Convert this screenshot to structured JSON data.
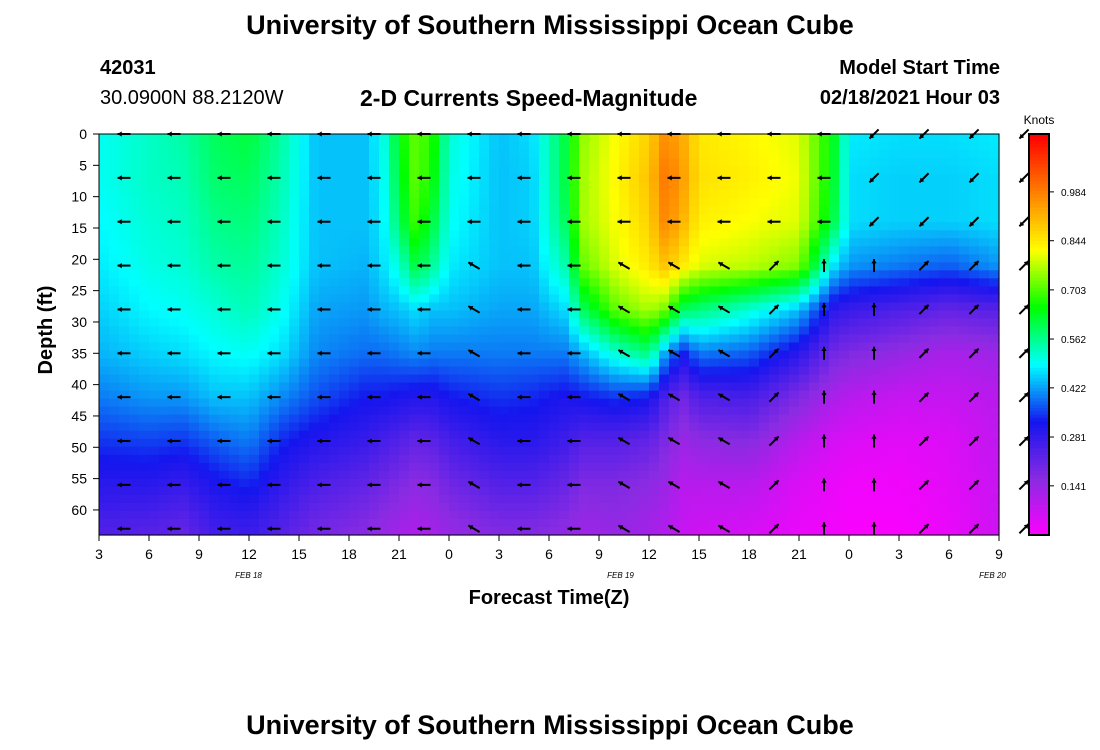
{
  "header": {
    "title": "University of Southern Mississippi Ocean Cube",
    "station_id": "42031",
    "station_coords": "30.0900N 88.2120W",
    "subtitle": "2-D Currents Speed-Magnitude",
    "model_label": "Model Start Time",
    "model_time": "02/18/2021 Hour 03",
    "footer_title": "University of Southern Mississippi Ocean Cube"
  },
  "chart_data": {
    "type": "heatmap",
    "title": "2-D Currents Speed-Magnitude",
    "xlabel": "Forecast Time(Z)",
    "ylabel": "Depth (ft)",
    "x_tick_labels": [
      "3",
      "6",
      "9",
      "12",
      "15",
      "18",
      "21",
      "0",
      "3",
      "6",
      "9",
      "12",
      "15",
      "18",
      "21",
      "0",
      "3",
      "6",
      "9"
    ],
    "x_range_hours": [
      0,
      54
    ],
    "date_labels": [
      {
        "text": "FEB 18",
        "hour": 9
      },
      {
        "text": "FEB 19",
        "hour": 33
      },
      {
        "text": "FEB 20",
        "hour": 57
      }
    ],
    "y_ticks": [
      0,
      5,
      10,
      15,
      20,
      25,
      30,
      35,
      40,
      45,
      50,
      55,
      60
    ],
    "ylim": [
      0,
      64
    ],
    "y_inverted": true,
    "colorbar": {
      "label": "Knots",
      "ticks": [
        "0.984",
        "0.844",
        "0.703",
        "0.562",
        "0.422",
        "0.281",
        "0.141"
      ],
      "range": [
        0,
        1.15
      ]
    },
    "color_stops": [
      "#ff00ff",
      "#8a2be2",
      "#1515ee",
      "#00ffff",
      "#00ff00",
      "#ffff00",
      "#ff8000",
      "#ff0000"
    ],
    "depths_ft": [
      0,
      7,
      14,
      21,
      28,
      35,
      42,
      49,
      56,
      63
    ],
    "speed_columns": [
      {
        "hour": 0,
        "v": [
          0.5,
          0.5,
          0.49,
          0.48,
          0.46,
          0.44,
          0.4,
          0.35,
          0.3,
          0.25
        ]
      },
      {
        "hour": 3,
        "v": [
          0.53,
          0.53,
          0.52,
          0.51,
          0.49,
          0.46,
          0.42,
          0.36,
          0.3,
          0.24
        ]
      },
      {
        "hour": 5,
        "v": [
          0.55,
          0.54,
          0.53,
          0.52,
          0.5,
          0.47,
          0.42,
          0.35,
          0.28,
          0.22
        ]
      },
      {
        "hour": 7,
        "v": [
          0.6,
          0.59,
          0.57,
          0.55,
          0.52,
          0.49,
          0.45,
          0.38,
          0.32,
          0.27
        ]
      },
      {
        "hour": 9,
        "v": [
          0.62,
          0.6,
          0.58,
          0.56,
          0.54,
          0.5,
          0.45,
          0.4,
          0.34,
          0.28
        ]
      },
      {
        "hour": 11,
        "v": [
          0.55,
          0.54,
          0.53,
          0.52,
          0.5,
          0.47,
          0.41,
          0.34,
          0.29,
          0.24
        ]
      },
      {
        "hour": 13,
        "v": [
          0.45,
          0.45,
          0.45,
          0.45,
          0.43,
          0.41,
          0.37,
          0.31,
          0.25,
          0.2
        ]
      },
      {
        "hour": 16,
        "v": [
          0.45,
          0.45,
          0.45,
          0.44,
          0.42,
          0.39,
          0.33,
          0.28,
          0.22,
          0.17
        ]
      },
      {
        "hour": 17,
        "v": [
          0.5,
          0.49,
          0.48,
          0.47,
          0.44,
          0.39,
          0.33,
          0.26,
          0.2,
          0.15
        ]
      },
      {
        "hour": 18,
        "v": [
          0.65,
          0.63,
          0.6,
          0.52,
          0.45,
          0.4,
          0.32,
          0.24,
          0.18,
          0.13
        ]
      },
      {
        "hour": 19,
        "v": [
          0.72,
          0.72,
          0.7,
          0.62,
          0.47,
          0.41,
          0.31,
          0.22,
          0.16,
          0.12
        ]
      },
      {
        "hour": 20,
        "v": [
          0.68,
          0.66,
          0.62,
          0.56,
          0.45,
          0.4,
          0.31,
          0.23,
          0.17,
          0.13
        ]
      },
      {
        "hour": 21,
        "v": [
          0.52,
          0.51,
          0.5,
          0.48,
          0.45,
          0.4,
          0.33,
          0.26,
          0.2,
          0.15
        ]
      },
      {
        "hour": 24,
        "v": [
          0.45,
          0.45,
          0.45,
          0.45,
          0.43,
          0.4,
          0.35,
          0.3,
          0.24,
          0.18
        ]
      },
      {
        "hour": 26,
        "v": [
          0.47,
          0.46,
          0.46,
          0.45,
          0.43,
          0.4,
          0.34,
          0.3,
          0.24,
          0.18
        ]
      },
      {
        "hour": 28,
        "v": [
          0.62,
          0.62,
          0.6,
          0.55,
          0.47,
          0.4,
          0.32,
          0.27,
          0.21,
          0.16
        ]
      },
      {
        "hour": 29,
        "v": [
          0.75,
          0.76,
          0.76,
          0.72,
          0.6,
          0.44,
          0.33,
          0.24,
          0.18,
          0.14
        ]
      },
      {
        "hour": 31,
        "v": [
          0.82,
          0.83,
          0.82,
          0.8,
          0.72,
          0.52,
          0.35,
          0.24,
          0.18,
          0.15
        ]
      },
      {
        "hour": 33,
        "v": [
          0.88,
          0.9,
          0.88,
          0.85,
          0.77,
          0.58,
          0.33,
          0.22,
          0.16,
          0.13
        ]
      },
      {
        "hour": 34,
        "v": [
          0.97,
          1.0,
          0.98,
          0.9,
          0.73,
          0.42,
          0.25,
          0.18,
          0.14,
          0.11
        ]
      },
      {
        "hour": 35,
        "v": [
          0.93,
          0.95,
          0.92,
          0.85,
          0.6,
          0.33,
          0.2,
          0.14,
          0.1,
          0.08
        ]
      },
      {
        "hour": 36,
        "v": [
          0.85,
          0.86,
          0.84,
          0.8,
          0.58,
          0.4,
          0.25,
          0.16,
          0.1,
          0.07
        ]
      },
      {
        "hour": 39,
        "v": [
          0.83,
          0.84,
          0.82,
          0.78,
          0.52,
          0.38,
          0.26,
          0.17,
          0.1,
          0.06
        ]
      },
      {
        "hour": 42,
        "v": [
          0.8,
          0.81,
          0.8,
          0.74,
          0.45,
          0.3,
          0.18,
          0.1,
          0.05,
          0.03
        ]
      },
      {
        "hour": 44,
        "v": [
          0.65,
          0.64,
          0.62,
          0.48,
          0.3,
          0.2,
          0.12,
          0.06,
          0.03,
          0.02
        ]
      },
      {
        "hour": 45,
        "v": [
          0.48,
          0.47,
          0.47,
          0.42,
          0.28,
          0.18,
          0.1,
          0.05,
          0.02,
          0.01
        ]
      },
      {
        "hour": 48,
        "v": [
          0.47,
          0.46,
          0.46,
          0.4,
          0.25,
          0.15,
          0.08,
          0.04,
          0.02,
          0.01
        ]
      },
      {
        "hour": 51,
        "v": [
          0.47,
          0.46,
          0.46,
          0.38,
          0.22,
          0.12,
          0.08,
          0.05,
          0.04,
          0.03
        ]
      },
      {
        "hour": 54,
        "v": [
          0.48,
          0.47,
          0.47,
          0.42,
          0.24,
          0.14,
          0.1,
          0.09,
          0.08,
          0.07
        ]
      }
    ],
    "vectors": {
      "hours": [
        0,
        3,
        6,
        9,
        12,
        15,
        18,
        21,
        24,
        27,
        30,
        33,
        36,
        39,
        42,
        45,
        48,
        51,
        54
      ],
      "depths_ft": [
        0,
        7,
        14,
        21,
        28,
        35,
        42,
        49,
        56,
        63
      ],
      "surface_dir": [
        "W",
        "W",
        "W",
        "W",
        "W",
        "W",
        "W",
        "W",
        "W",
        "W",
        "W",
        "W",
        "W",
        "W",
        "W",
        "SW",
        "SW",
        "SW",
        "SW"
      ],
      "lower_dir": [
        "W",
        "W",
        "W",
        "W",
        "W",
        "W",
        "W",
        "NW",
        "W",
        "W",
        "NW",
        "NW",
        "NW",
        "NE",
        "N",
        "N",
        "NE",
        "NE",
        "NE"
      ]
    }
  }
}
